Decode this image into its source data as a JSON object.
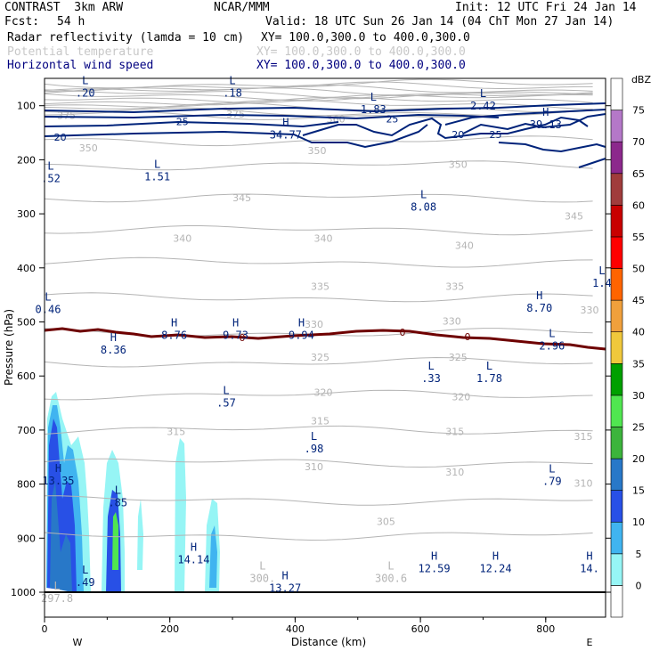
{
  "header": {
    "model": "CONTRAST  3km ARW",
    "org": "NCAR/MMM",
    "init": "Init: 12 UTC Fri 24 Jan 14",
    "fcst_label": "Fcst:",
    "fcst_value": "54 h",
    "valid": "Valid: 18 UTC Sun 26 Jan 14 (04 ChT Mon 27 Jan 14)",
    "fields": [
      {
        "name": "Radar reflectivity (lamda = 10 cm)",
        "xy": "XY= 100.0,300.0 to 400.0,300.0",
        "color": "#000000"
      },
      {
        "name": "Potential temperature",
        "xy": "XY= 100.0,300.0 to 400.0,300.0",
        "color": "#c8c8c8"
      },
      {
        "name": "Horizontal wind speed",
        "xy": "XY= 100.0,300.0 to 400.0,300.0",
        "color": "#000080"
      }
    ]
  },
  "chart_data": {
    "type": "cross-section",
    "ylabel": "Pressure (hPa)",
    "xlabel": "Distance (km)",
    "xlim": [
      0,
      895
    ],
    "ylim": [
      1050,
      50
    ],
    "x_ticks": [
      0,
      200,
      400,
      600,
      800
    ],
    "y_ticks": [
      100,
      200,
      300,
      400,
      500,
      600,
      700,
      800,
      900,
      1000
    ],
    "end_labels": {
      "west": "W",
      "east": "E"
    },
    "colorbar": {
      "unit": "dBZ",
      "levels": [
        0,
        5,
        10,
        15,
        20,
        25,
        30,
        35,
        40,
        45,
        50,
        55,
        60,
        65,
        70,
        75
      ],
      "colors": [
        "#ffffff",
        "#96f5f5",
        "#40b4f0",
        "#2850e6",
        "#2878c8",
        "#3cb43c",
        "#50e650",
        "#00a000",
        "#f0c83c",
        "#f0a03c",
        "#ff6400",
        "#ff0000",
        "#c80000",
        "#a03c3c",
        "#8c288c",
        "#b478c8",
        "#ffffff"
      ]
    },
    "theta_labels": [
      {
        "text": "375",
        "x": 35,
        "p": 118
      },
      {
        "text": "375",
        "x": 305,
        "p": 115
      },
      {
        "text": "360",
        "x": 465,
        "p": 124
      },
      {
        "text": "350",
        "x": 70,
        "p": 178
      },
      {
        "text": "350",
        "x": 435,
        "p": 183
      },
      {
        "text": "350",
        "x": 660,
        "p": 208
      },
      {
        "text": "345",
        "x": 315,
        "p": 270
      },
      {
        "text": "345",
        "x": 845,
        "p": 304
      },
      {
        "text": "340",
        "x": 220,
        "p": 345
      },
      {
        "text": "340",
        "x": 445,
        "p": 345
      },
      {
        "text": "340",
        "x": 670,
        "p": 358
      },
      {
        "text": "335",
        "x": 440,
        "p": 434
      },
      {
        "text": "335",
        "x": 655,
        "p": 434
      },
      {
        "text": "330",
        "x": 430,
        "p": 504
      },
      {
        "text": "330",
        "x": 650,
        "p": 498
      },
      {
        "text": "330",
        "x": 870,
        "p": 478
      },
      {
        "text": "325",
        "x": 440,
        "p": 565
      },
      {
        "text": "325",
        "x": 660,
        "p": 565
      },
      {
        "text": "320",
        "x": 445,
        "p": 630
      },
      {
        "text": "320",
        "x": 665,
        "p": 638
      },
      {
        "text": "315",
        "x": 210,
        "p": 703
      },
      {
        "text": "315",
        "x": 440,
        "p": 683
      },
      {
        "text": "315",
        "x": 655,
        "p": 703
      },
      {
        "text": "315",
        "x": 860,
        "p": 712
      },
      {
        "text": "310",
        "x": 430,
        "p": 768
      },
      {
        "text": "310",
        "x": 655,
        "p": 778
      },
      {
        "text": "310",
        "x": 860,
        "p": 798
      },
      {
        "text": "305",
        "x": 545,
        "p": 869
      }
    ],
    "wind_labels": [
      {
        "text": "25",
        "x": 220,
        "p": 129
      },
      {
        "text": "25",
        "x": 555,
        "p": 124
      },
      {
        "text": "20",
        "x": 25,
        "p": 158
      },
      {
        "text": "20",
        "x": 660,
        "p": 153
      },
      {
        "text": "25",
        "x": 720,
        "p": 153
      }
    ],
    "extrema": [
      {
        "mark": "L",
        "value": ".20",
        "x": 65,
        "p": 80
      },
      {
        "mark": "L",
        "value": ".18",
        "x": 300,
        "p": 80
      },
      {
        "mark": "L",
        "value": "1.83",
        "x": 525,
        "p": 110
      },
      {
        "mark": "L",
        "value": "2.42",
        "x": 700,
        "p": 104
      },
      {
        "mark": "H",
        "value": "39.13",
        "x": 800,
        "p": 138
      },
      {
        "mark": "H",
        "value": "34.77",
        "x": 385,
        "p": 157
      },
      {
        "mark": "L",
        "value": ".52",
        "x": 10,
        "p": 238
      },
      {
        "mark": "L",
        "value": "1.51",
        "x": 180,
        "p": 235
      },
      {
        "mark": "L",
        "value": "8.08",
        "x": 605,
        "p": 291
      },
      {
        "mark": "L",
        "value": "1.4",
        "x": 900,
        "p": 432
      },
      {
        "mark": "L",
        "value": "0.46",
        "x": 0,
        "p": 480
      },
      {
        "mark": "H",
        "value": "8.70",
        "x": 790,
        "p": 478
      },
      {
        "mark": "H",
        "value": "8.76",
        "x": 207,
        "p": 528
      },
      {
        "mark": "H",
        "value": "9.73",
        "x": 305,
        "p": 528
      },
      {
        "mark": "H",
        "value": "9.94",
        "x": 410,
        "p": 528
      },
      {
        "mark": "H",
        "value": "8.36",
        "x": 110,
        "p": 555
      },
      {
        "mark": "L",
        "value": "2.96",
        "x": 810,
        "p": 548
      },
      {
        "mark": "L",
        "value": ".33",
        "x": 617,
        "p": 608
      },
      {
        "mark": "L",
        "value": "1.78",
        "x": 710,
        "p": 608
      },
      {
        "mark": "L",
        "value": ".57",
        "x": 290,
        "p": 653
      },
      {
        "mark": "L",
        "value": ".98",
        "x": 430,
        "p": 738
      },
      {
        "mark": "H",
        "value": "13.35",
        "x": 22,
        "p": 797
      },
      {
        "mark": "L",
        "value": ".79",
        "x": 810,
        "p": 798
      },
      {
        "mark": "L",
        "value": ".85",
        "x": 117,
        "p": 838
      },
      {
        "mark": "H",
        "value": "14.14",
        "x": 238,
        "p": 943
      },
      {
        "mark": "L",
        "value": ".49",
        "x": 65,
        "p": 985
      },
      {
        "mark": "L",
        "value": "300.",
        "x": 348,
        "p": 978
      },
      {
        "mark": "L",
        "value": "300.6",
        "x": 553,
        "p": 978
      },
      {
        "mark": "H",
        "value": "12.59",
        "x": 622,
        "p": 960
      },
      {
        "mark": "H",
        "value": "12.24",
        "x": 720,
        "p": 960
      },
      {
        "mark": "H",
        "value": "14.",
        "x": 870,
        "p": 960
      },
      {
        "mark": "H",
        "value": "13.27",
        "x": 384,
        "p": 996
      },
      {
        "mark": "L",
        "value": "297.8",
        "x": 20,
        "p": 1015
      }
    ],
    "zero_line_label": "0"
  }
}
